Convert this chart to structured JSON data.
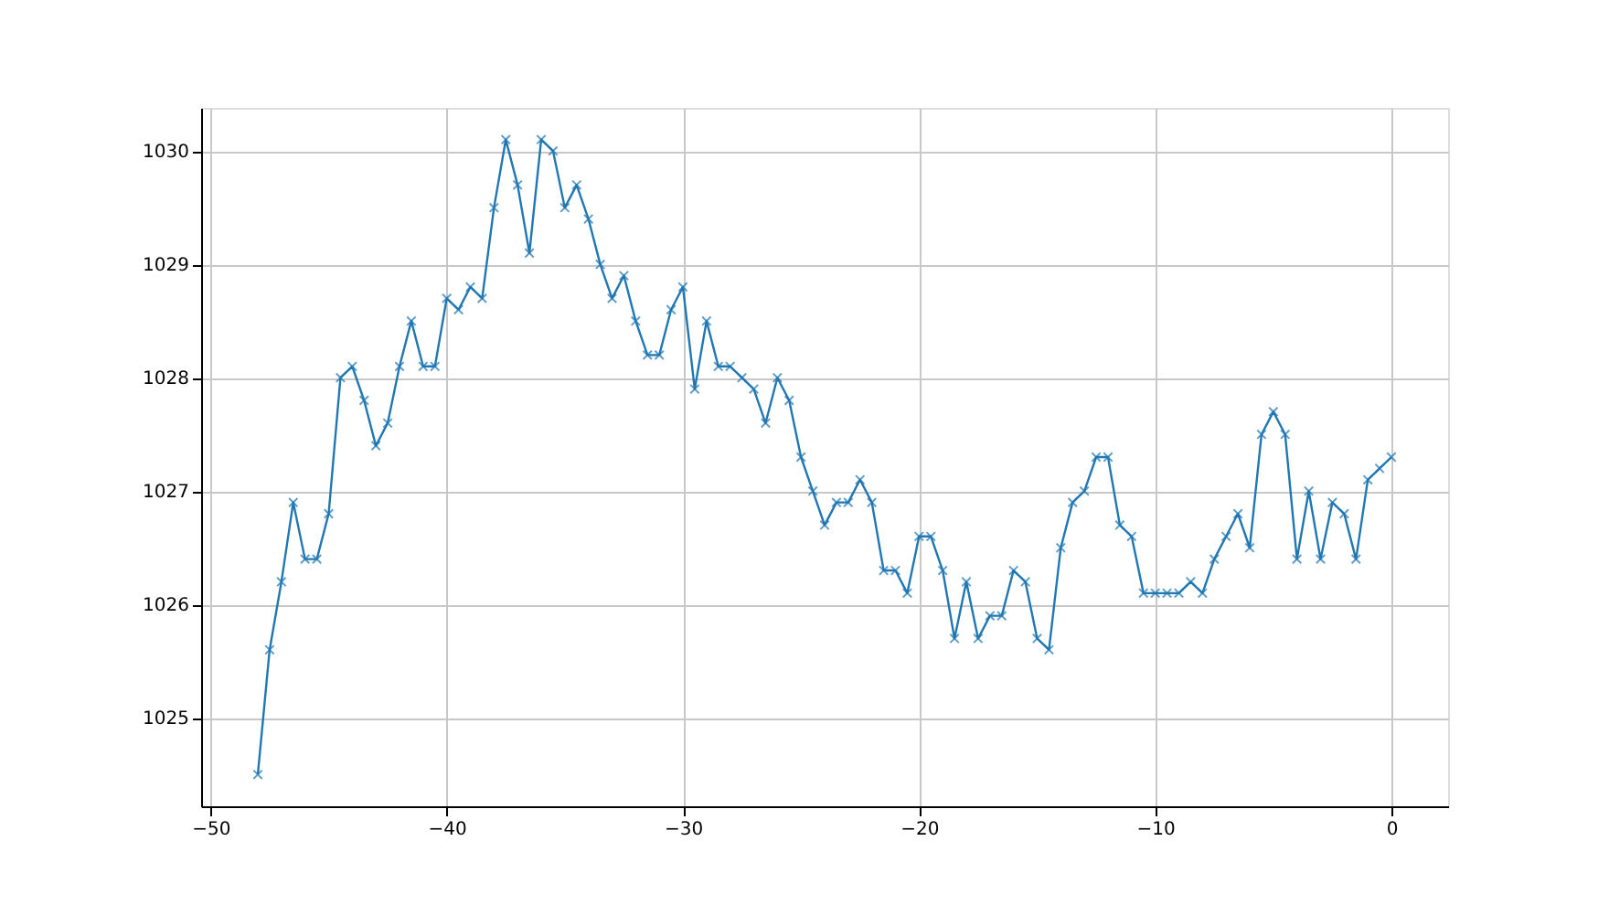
{
  "chart_data": {
    "type": "line",
    "x": [
      -48,
      -47.5,
      -47,
      -46.5,
      -46,
      -45.5,
      -45,
      -44.5,
      -44,
      -43.5,
      -43,
      -42.5,
      -42,
      -41.5,
      -41,
      -40.5,
      -40,
      -39.5,
      -39,
      -38.5,
      -38,
      -37.5,
      -37,
      -36.5,
      -36,
      -35.5,
      -35,
      -34.5,
      -34,
      -33.5,
      -33,
      -32.5,
      -32,
      -31.5,
      -31,
      -30.5,
      -30,
      -29.5,
      -29,
      -28.5,
      -28,
      -27.5,
      -27,
      -26.5,
      -26,
      -25.5,
      -25,
      -24.5,
      -24,
      -23.5,
      -23,
      -22.5,
      -22,
      -21.5,
      -21,
      -20.5,
      -20,
      -19.5,
      -19,
      -18.5,
      -18,
      -17.5,
      -17,
      -16.5,
      -16,
      -15.5,
      -15,
      -14.5,
      -14,
      -13.5,
      -13,
      -12.5,
      -12,
      -11.5,
      -11,
      -10.5,
      -10,
      -9.5,
      -9,
      -8.5,
      -8,
      -7.5,
      -7,
      -6.5,
      -6,
      -5.5,
      -5,
      -4.5,
      -4,
      -3.5,
      -3,
      -2.5,
      -2,
      -1.5,
      -1,
      -0.5,
      0
    ],
    "series": [
      {
        "color": "#1f77b4",
        "values": [
          1024.5,
          1025.6,
          1026.2,
          1026.9,
          1026.4,
          1026.4,
          1026.8,
          1028.0,
          1028.1,
          1027.8,
          1027.4,
          1027.6,
          1028.1,
          1028.5,
          1028.1,
          1028.1,
          1028.7,
          1028.6,
          1028.8,
          1028.7,
          1029.5,
          1030.1,
          1029.7,
          1029.1,
          1030.1,
          1030.0,
          1029.5,
          1029.7,
          1029.4,
          1029.0,
          1028.7,
          1028.9,
          1028.5,
          1028.2,
          1028.2,
          1028.6,
          1028.8,
          1027.9,
          1028.5,
          1028.1,
          1028.1,
          1028.0,
          1027.9,
          1027.6,
          1028.0,
          1027.8,
          1027.3,
          1027.0,
          1026.7,
          1026.9,
          1026.9,
          1027.1,
          1026.9,
          1026.3,
          1026.3,
          1026.1,
          1026.6,
          1026.6,
          1026.3,
          1025.7,
          1026.2,
          1025.7,
          1025.9,
          1025.9,
          1026.3,
          1026.2,
          1025.7,
          1025.6,
          1026.5,
          1026.9,
          1027.0,
          1027.3,
          1027.3,
          1026.7,
          1026.6,
          1026.1,
          1026.1,
          1026.1,
          1026.1,
          1026.2,
          1026.1,
          1026.4,
          1026.6,
          1026.8,
          1026.5,
          1027.5,
          1027.7,
          1027.5,
          1026.4,
          1027.0,
          1026.4,
          1026.9,
          1026.8,
          1026.4,
          1027.1,
          1027.2,
          1027.3
        ]
      }
    ],
    "xlim": [
      -50.4,
      2.4
    ],
    "xticks": [
      -50,
      -40,
      -30,
      -20,
      -10,
      0
    ],
    "ylim": [
      1024.22,
      1030.38
    ],
    "yticks": [
      1025,
      1026,
      1027,
      1028,
      1029,
      1030
    ],
    "grid": true,
    "marker": "cross",
    "line_style": "solid"
  }
}
